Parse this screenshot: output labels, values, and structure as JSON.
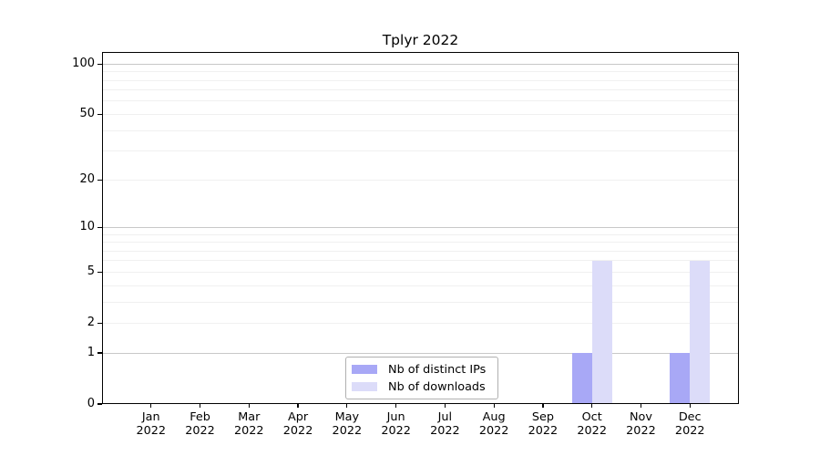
{
  "chart_data": {
    "type": "bar",
    "title": "Tplyr 2022",
    "categories": [
      "Jan 2022",
      "Feb 2022",
      "Mar 2022",
      "Apr 2022",
      "May 2022",
      "Jun 2022",
      "Jul 2022",
      "Aug 2022",
      "Sep 2022",
      "Oct 2022",
      "Nov 2022",
      "Dec 2022"
    ],
    "series": [
      {
        "name": "Nb of distinct IPs",
        "color": "#a8a8f6",
        "values": [
          0,
          0,
          0,
          0,
          0,
          0,
          0,
          0,
          0,
          1,
          0,
          1
        ]
      },
      {
        "name": "Nb of downloads",
        "color": "#dcdcf9",
        "values": [
          0,
          0,
          0,
          0,
          0,
          0,
          0,
          0,
          0,
          6,
          0,
          6
        ]
      }
    ],
    "xlabel": "",
    "ylabel": "",
    "yscale": "log1p",
    "yticks": [
      0,
      1,
      2,
      5,
      10,
      20,
      50,
      100
    ],
    "ylim": [
      0,
      118
    ],
    "grid": {
      "major_values": [
        1,
        10,
        100
      ],
      "minor_values": [
        2,
        3,
        4,
        5,
        6,
        7,
        8,
        9,
        20,
        30,
        40,
        50,
        60,
        70,
        80,
        90
      ],
      "major_color": "#c8c8c8",
      "minor_color": "#f0f0f0"
    },
    "legend_position": "bottom-center"
  }
}
